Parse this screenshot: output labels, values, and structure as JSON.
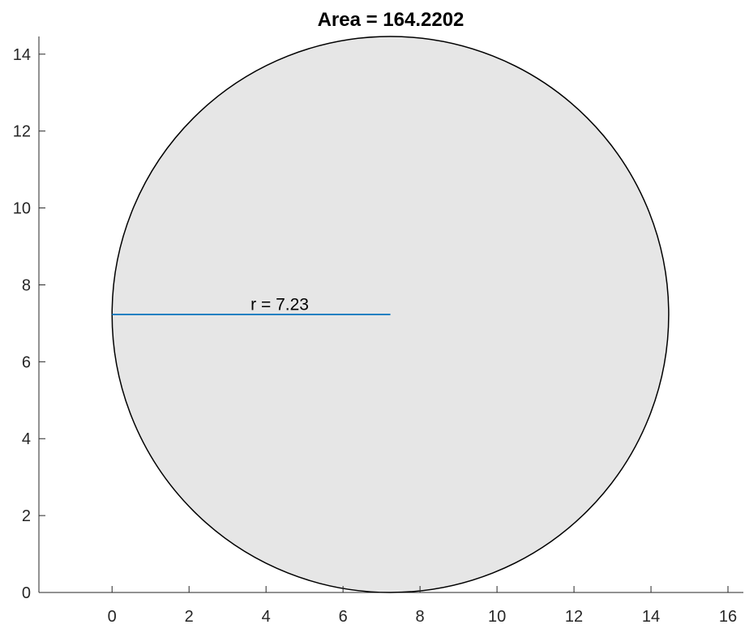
{
  "chart_data": {
    "type": "area",
    "title": "Area = 164.2202",
    "xlabel": "",
    "ylabel": "",
    "xlim": [
      -1.9,
      16.4
    ],
    "ylim": [
      0,
      14.46
    ],
    "x_ticks": [
      0,
      2,
      4,
      6,
      8,
      10,
      12,
      14,
      16
    ],
    "y_ticks": [
      0,
      2,
      4,
      6,
      8,
      10,
      12,
      14
    ],
    "grid": false,
    "shape": {
      "kind": "circle",
      "center": [
        7.23,
        7.23
      ],
      "radius": 7.23,
      "fill_color": "#e6e6e6",
      "edge_color": "#000000"
    },
    "radius_line": {
      "x": [
        0,
        7.23
      ],
      "y": [
        7.23,
        7.23
      ],
      "color": "#0072bd"
    },
    "annotations": [
      {
        "text": "r = 7.23",
        "x": 3.6,
        "y": 7.35
      }
    ]
  }
}
